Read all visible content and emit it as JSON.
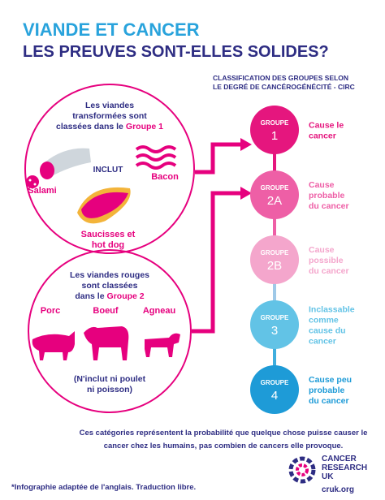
{
  "header": {
    "title_line1": "VIANDE ET CANCER",
    "title_line2": "LES PREUVES SONT-ELLES SOLIDES?",
    "classification": [
      "CLASSIFICATION DES GROUPES SELON",
      "LE DEGRÉ DE CANCÉROGÉNÉCITÉ - CIRC"
    ]
  },
  "processed": {
    "lines": [
      "Les viandes",
      "transformées sont",
      "classées dans le"
    ],
    "group": "Groupe 1",
    "includes": "INCLUT",
    "items": [
      "Salami",
      "Bacon"
    ],
    "sausage": [
      "Saucisses et",
      "hot dog"
    ]
  },
  "red": {
    "lines": [
      "Les viandes rouges",
      "sont classées",
      "dans le"
    ],
    "group": "Groupe 2",
    "animals": [
      "Porc",
      "Boeuf",
      "Agneau"
    ],
    "note": [
      "(N'inclut ni poulet",
      "ni poisson)"
    ]
  },
  "groups": [
    {
      "label": "GROUPE",
      "number": "1",
      "description": [
        "Cause le",
        "cancer"
      ]
    },
    {
      "label": "GROUPE",
      "number": "2A",
      "description": [
        "Cause",
        "probable",
        "du cancer"
      ]
    },
    {
      "label": "GROUPE",
      "number": "2B",
      "description": [
        "Cause",
        "possible",
        "du cancer"
      ]
    },
    {
      "label": "GROUPE",
      "number": "3",
      "description": [
        "Inclassable",
        "comme",
        "cause du",
        "cancer"
      ]
    },
    {
      "label": "GROUPE",
      "number": "4",
      "description": [
        "Cause peu",
        "probable",
        "du cancer"
      ]
    }
  ],
  "footer": {
    "note": [
      "Ces catégories représentent la probabilité que quelque chose puisse causer le",
      "cancer chez les humains, pas combien de cancers elle provoque."
    ],
    "credit": "*Infographie adaptée de l'anglais. Traduction libre.",
    "logo": [
      "CANCER",
      "RESEARCH",
      "UK"
    ],
    "url": "cruk.org"
  }
}
